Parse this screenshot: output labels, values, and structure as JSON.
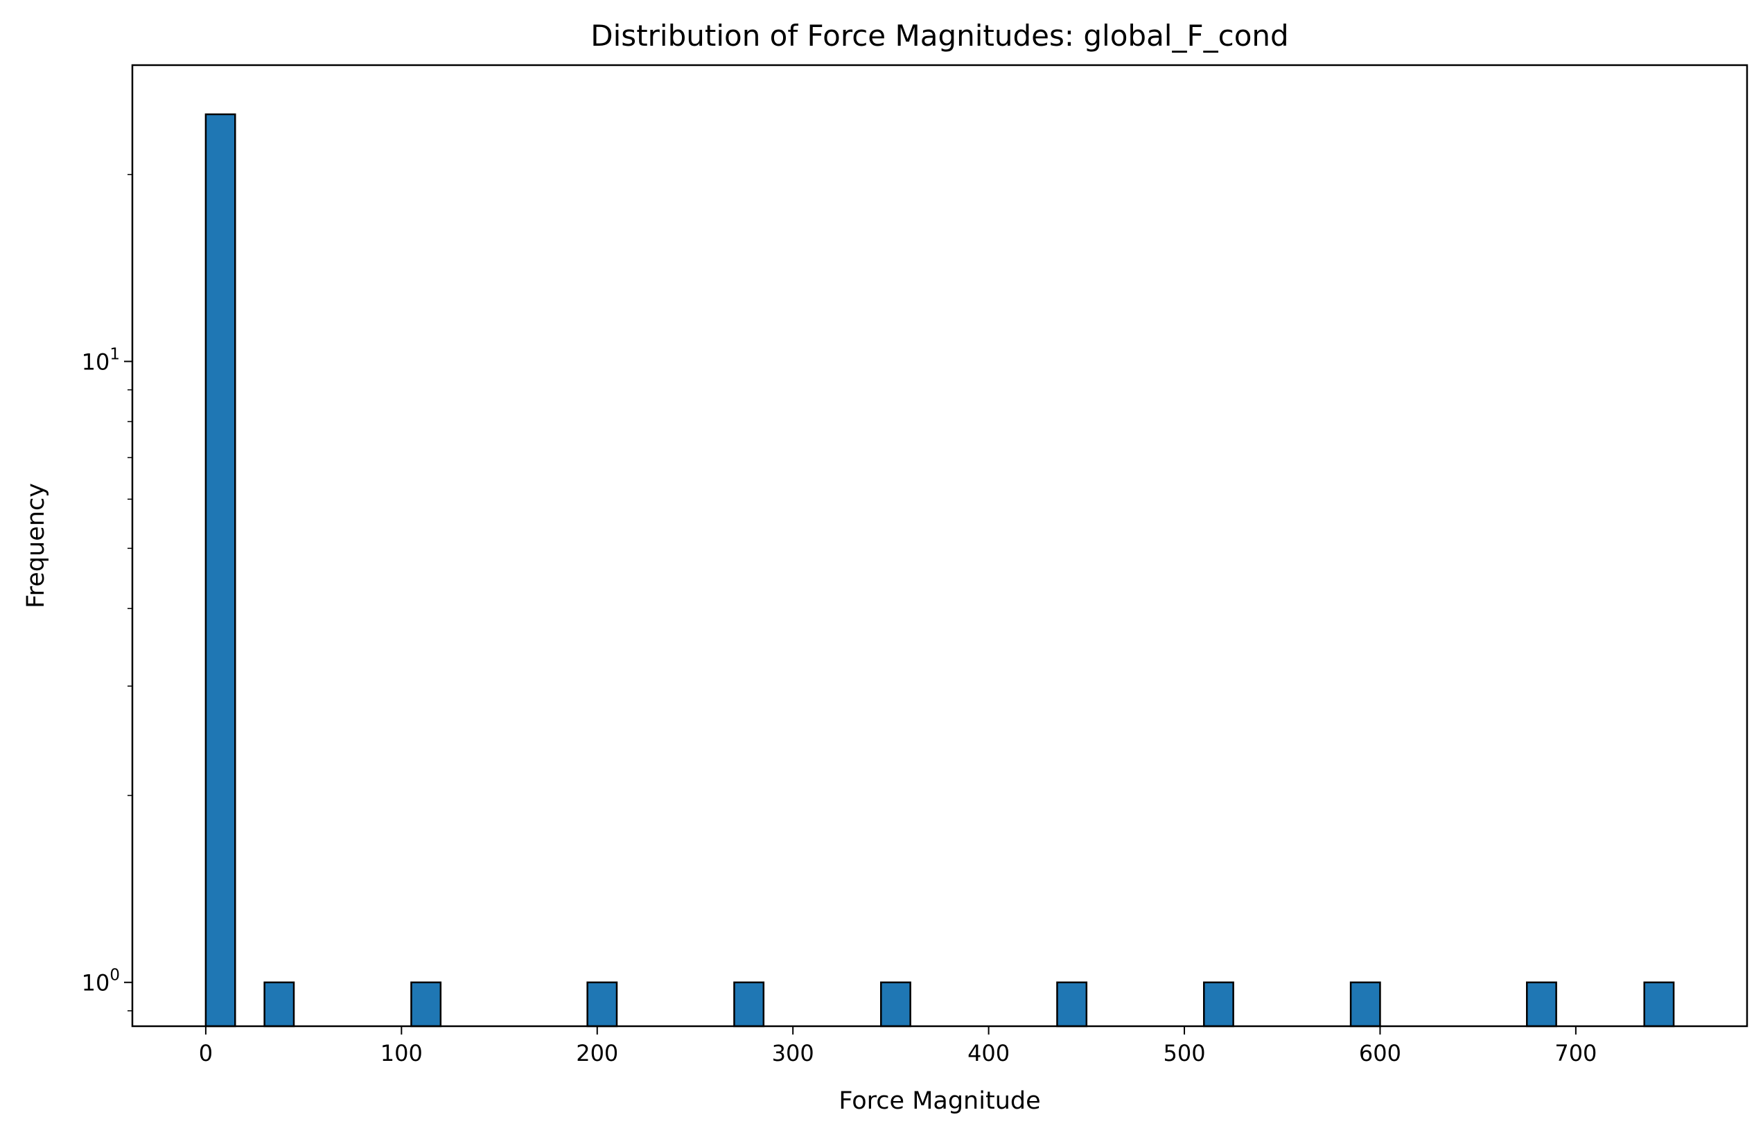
{
  "chart_data": {
    "type": "bar",
    "subtype": "histogram",
    "title": "Distribution of Force Magnitudes: global_F_cond",
    "xlabel": "Force Magnitude",
    "ylabel": "Frequency",
    "y_scale": "log",
    "xlim": [
      -37.5,
      787.5
    ],
    "ylim": [
      0.85,
      30
    ],
    "x_ticks": [
      "0",
      "100",
      "200",
      "300",
      "400",
      "500",
      "600",
      "700"
    ],
    "y_ticks": [
      {
        "value": 1,
        "base": "10",
        "exp": "0"
      },
      {
        "value": 10,
        "base": "10",
        "exp": "1"
      }
    ],
    "grid": false,
    "bar_color": "#1f77b4",
    "edge_color": "#000000",
    "bins": [
      {
        "x0": 0,
        "x1": 15,
        "count": 25
      },
      {
        "x0": 30,
        "x1": 45,
        "count": 1
      },
      {
        "x0": 105,
        "x1": 120,
        "count": 1
      },
      {
        "x0": 195,
        "x1": 210,
        "count": 1
      },
      {
        "x0": 270,
        "x1": 285,
        "count": 1
      },
      {
        "x0": 345,
        "x1": 360,
        "count": 1
      },
      {
        "x0": 435,
        "x1": 450,
        "count": 1
      },
      {
        "x0": 510,
        "x1": 525,
        "count": 1
      },
      {
        "x0": 585,
        "x1": 600,
        "count": 1
      },
      {
        "x0": 675,
        "x1": 690,
        "count": 1
      },
      {
        "x0": 735,
        "x1": 750,
        "count": 1
      }
    ]
  }
}
